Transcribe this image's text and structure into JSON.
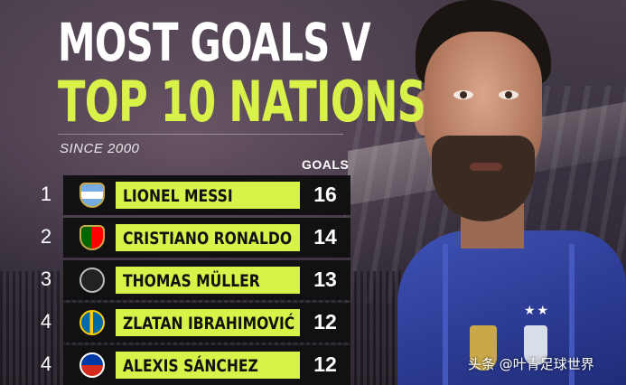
{
  "title_line1": "MOST GOALS V",
  "title_line2": "TOP 10 NATIONS",
  "subtitle": "SINCE 2000",
  "goals_header": "GOALS",
  "colors": {
    "accent": "#d9f24a",
    "panel": "#111111",
    "jersey": "#2e3e98"
  },
  "rows": [
    {
      "rank": "1",
      "flag": "argentina-crest",
      "name": "LIONEL MESSI",
      "goals": "16"
    },
    {
      "rank": "2",
      "flag": "portugal-crest",
      "name": "CRISTIANO RONALDO",
      "goals": "14"
    },
    {
      "rank": "3",
      "flag": "germany-crest",
      "name": "THOMAS MÜLLER",
      "goals": "13"
    },
    {
      "rank": "4",
      "flag": "sweden-crest",
      "name": "ZLATAN IBRAHIMOVIĆ",
      "goals": "12"
    },
    {
      "rank": "4",
      "flag": "chile-crest",
      "name": "ALEXIS SÁNCHEZ",
      "goals": "12"
    }
  ],
  "watermark": "头条 @叶青足球世界"
}
